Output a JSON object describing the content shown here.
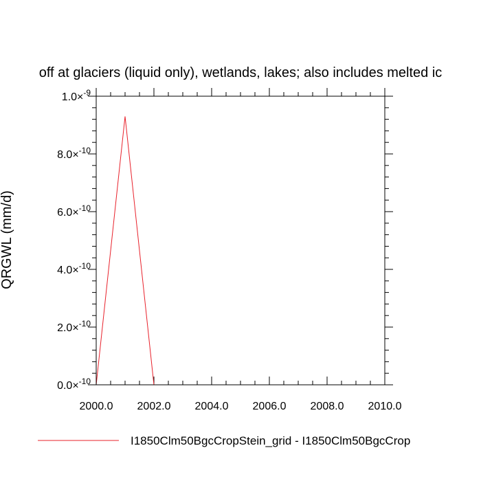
{
  "chart_data": {
    "type": "line",
    "title": "off at glaciers (liquid only), wetlands, lakes; also includes melted ic",
    "xlabel": "",
    "ylabel": "QRGWL  (mm/d)",
    "xlim": [
      2000,
      2010
    ],
    "ylim": [
      0,
      1e-09
    ],
    "x_ticks": [
      {
        "value": 2000,
        "label": "2000.0"
      },
      {
        "value": 2002,
        "label": "2002.0"
      },
      {
        "value": 2004,
        "label": "2004.0"
      },
      {
        "value": 2006,
        "label": "2006.0"
      },
      {
        "value": 2008,
        "label": "2008.0"
      },
      {
        "value": 2010,
        "label": "2010.0"
      }
    ],
    "y_ticks": [
      {
        "value": 0.0,
        "mantissa": "0.0",
        "exponent": "-10"
      },
      {
        "value": 2e-10,
        "mantissa": "2.0",
        "exponent": "-10"
      },
      {
        "value": 4e-10,
        "mantissa": "4.0",
        "exponent": "-10"
      },
      {
        "value": 6e-10,
        "mantissa": "6.0",
        "exponent": "-10"
      },
      {
        "value": 8e-10,
        "mantissa": "8.0",
        "exponent": "-10"
      },
      {
        "value": 1e-09,
        "mantissa": "1.0",
        "exponent": "-9"
      }
    ],
    "times_sign": "×",
    "x_minor_step": 0.5,
    "y_minor_step": 4e-11,
    "grid": false,
    "legend_position": "bottom",
    "series": [
      {
        "name": "I1850Clm50BgcCropStein_grid - I1850Clm50BgcCrop",
        "color": "#e8202a",
        "x": [
          2000,
          2001,
          2002,
          2003,
          2004,
          2005,
          2006,
          2007,
          2008,
          2009,
          2010
        ],
        "y": [
          0,
          9.3e-10,
          0,
          0,
          0,
          0,
          0,
          0,
          0,
          0,
          0
        ]
      }
    ]
  }
}
